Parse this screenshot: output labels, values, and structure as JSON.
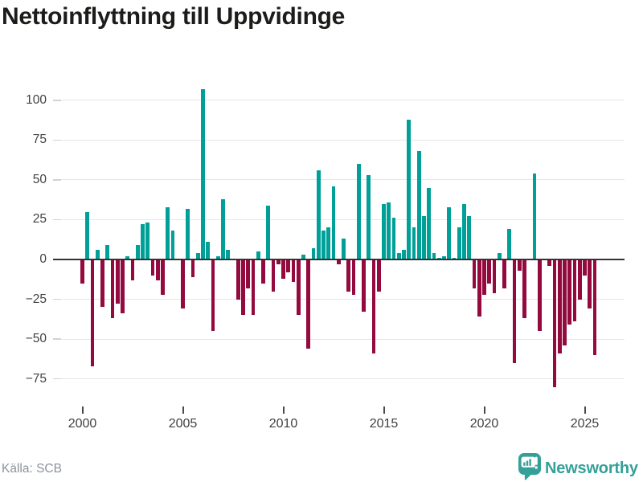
{
  "header": {
    "title": "Nettoinflyttning till Uppvidinge"
  },
  "footer": {
    "source": "Källa: SCB",
    "brand": "Newsworthy"
  },
  "chart_data": {
    "type": "bar",
    "title": "Nettoinflyttning till Uppvidinge",
    "source": "Källa: SCB",
    "frequency": "quarterly",
    "x_start": "2000-Q1",
    "x_end": "2025-Q3",
    "series": [
      {
        "name": "Nettoinflyttning per kvartal",
        "values": [
          -15,
          30,
          -67,
          6,
          -30,
          9,
          -37,
          -28,
          -34,
          2,
          -13,
          9,
          22,
          23,
          -10,
          -13,
          -22,
          33,
          18,
          0,
          -31,
          32,
          -11,
          4,
          107,
          11,
          -45,
          2,
          38,
          6,
          0,
          -25,
          -35,
          -18,
          -35,
          5,
          -15,
          34,
          -20,
          -3,
          -12,
          -8,
          -14,
          -35,
          3,
          -56,
          7,
          56,
          18,
          20,
          46,
          -3,
          13,
          -20,
          -22,
          60,
          -33,
          53,
          -59,
          -20,
          35,
          36,
          26,
          4,
          6,
          88,
          20,
          68,
          27,
          45,
          4,
          1,
          2,
          33,
          1,
          20,
          35,
          27,
          -18,
          -36,
          -22,
          -15,
          -21,
          4,
          -18,
          19,
          -65,
          -7,
          -37,
          0,
          54,
          -45,
          0,
          -4,
          -80,
          -59,
          -54,
          -41,
          -39,
          -25,
          -10,
          -31,
          -60
        ]
      }
    ],
    "xlabel": "",
    "ylabel": "",
    "ylim": [
      -85,
      112
    ],
    "grid": true,
    "legend": "none",
    "y_ticks": [
      100,
      75,
      50,
      25,
      0,
      -25,
      -50,
      -75
    ],
    "y_tick_labels": [
      "100",
      "75",
      "50",
      "25",
      "0",
      "−25",
      "−50",
      "−75"
    ],
    "x_ticks": [
      2000,
      2005,
      2010,
      2015,
      2020,
      2025
    ],
    "x_tick_labels": [
      "2000",
      "2005",
      "2010",
      "2015",
      "2020",
      "2025"
    ],
    "positive_color": "#00a099",
    "negative_color": "#94093e",
    "zero_line_color": "#333333",
    "gridline_color": "#e6e6e6"
  }
}
